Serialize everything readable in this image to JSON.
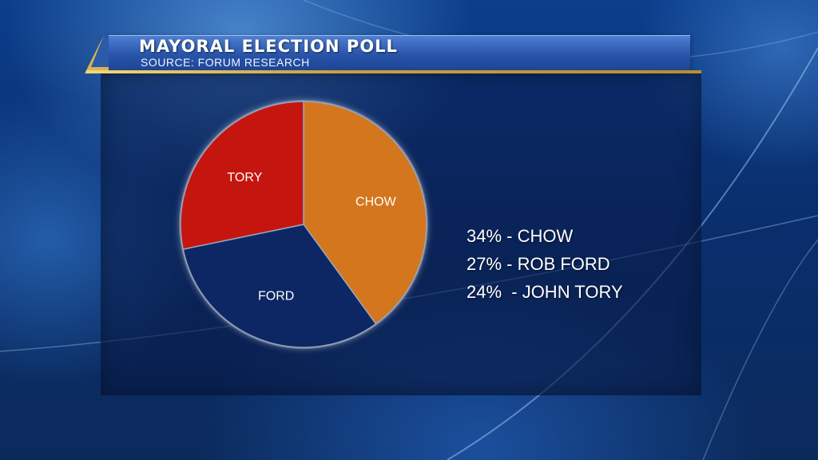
{
  "header": {
    "title": "MAYORAL ELECTION POLL",
    "source": "SOURCE: FORUM RESEARCH"
  },
  "legend": {
    "lines": [
      "34% - CHOW",
      "27% - ROB FORD",
      "24%  - JOHN TORY"
    ]
  },
  "colors": {
    "chow": "#d4761e",
    "ford": "#0c2763",
    "tory": "#c5150f",
    "slice_border": "#9aa7bf"
  },
  "chart_data": {
    "type": "pie",
    "slices": [
      {
        "label": "CHOW",
        "value": 34
      },
      {
        "label": "FORD",
        "value": 27
      },
      {
        "label": "TORY",
        "value": 24
      }
    ]
  }
}
